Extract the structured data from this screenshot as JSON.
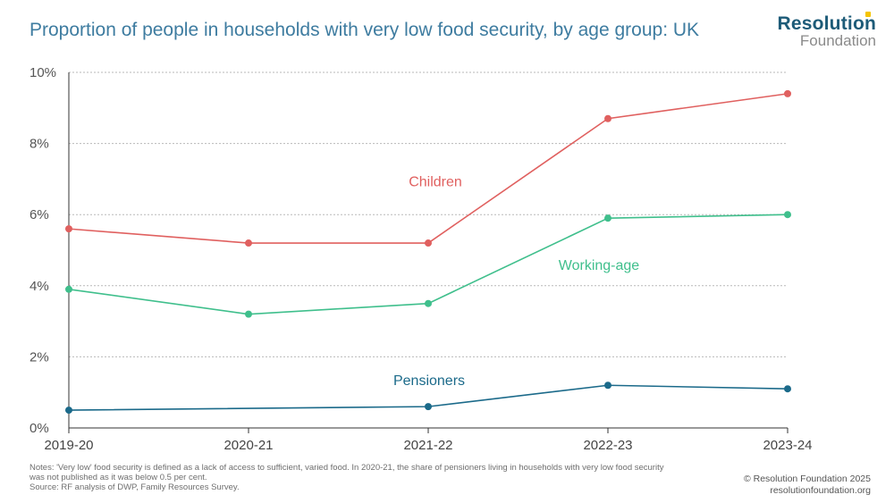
{
  "header": {
    "title": "Proportion of people in households with very low food security, by age group: UK",
    "brand_name": "Resolution",
    "brand_sub": "Foundation"
  },
  "chart_data": {
    "type": "line",
    "title": "Proportion of people in households with very low food security, by age group: UK",
    "categories": [
      "2019-20",
      "2020-21",
      "2021-22",
      "2022-23",
      "2023-24"
    ],
    "ylim": [
      0,
      10
    ],
    "yticks": [
      0,
      2,
      4,
      6,
      8,
      10
    ],
    "ytick_labels": [
      "0%",
      "2%",
      "4%",
      "6%",
      "8%",
      "10%"
    ],
    "grid": true,
    "series": [
      {
        "name": "Children",
        "values": [
          5.6,
          5.2,
          5.2,
          8.7,
          9.4
        ],
        "color": "#e0605f"
      },
      {
        "name": "Working-age",
        "values": [
          3.9,
          3.2,
          3.5,
          5.9,
          6.0
        ],
        "color": "#3fbf8c"
      },
      {
        "name": "Pensioners",
        "values": [
          0.5,
          null,
          0.6,
          1.2,
          1.1
        ],
        "color": "#1b6a8a"
      }
    ]
  },
  "footer": {
    "notes": [
      "Notes: 'Very low' food security is defined as a lack of access to sufficient, varied food. In 2020-21, the share of pensioners living in households with very low food security",
      "was not published as it was below 0.5 per cent.",
      "Source: RF analysis of DWP, Family Resources Survey."
    ],
    "credit": "© Resolution Foundation 2025",
    "website": "resolutionfoundation.org"
  }
}
